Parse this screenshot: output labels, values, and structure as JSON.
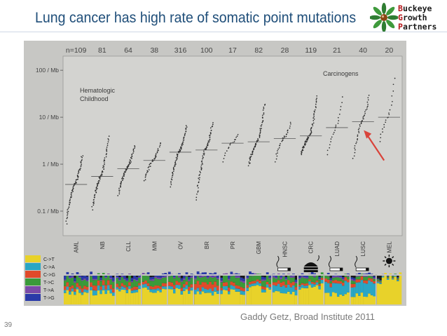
{
  "slide": {
    "title": "Lung cancer has high rate of somatic point mutations",
    "credit": "Gaddy Getz, Broad Institute 2011",
    "page_number": "39"
  },
  "logo": {
    "words": [
      {
        "cap": "B",
        "rest": "uckeye"
      },
      {
        "cap": "G",
        "rest": "rowth"
      },
      {
        "cap": "P",
        "rest": "artners"
      }
    ],
    "icon": "buckeye-leaf-icon",
    "leaf_color": "#2f7d32",
    "nut_color": "#8b4513"
  },
  "chart_data": {
    "type": "scatter",
    "y_scale": "log",
    "ylim": [
      0.03,
      200
    ],
    "y_ticks": [
      {
        "value": 100,
        "label": "100 / Mb"
      },
      {
        "value": 10,
        "label": "10 / Mb"
      },
      {
        "value": 1,
        "label": "1 / Mb"
      },
      {
        "value": 0.1,
        "label": "0.1 / Mb"
      }
    ],
    "grid": false,
    "annotations": {
      "group_left": [
        "Hematologic",
        "Childhood"
      ],
      "group_right": "Carcinogens"
    },
    "categories": [
      {
        "name": "AML",
        "n": "n=109",
        "min": 0.05,
        "median": 0.37,
        "max": 1.6,
        "n_points": 109
      },
      {
        "name": "NB",
        "n": "81",
        "min": 0.1,
        "median": 0.55,
        "max": 4,
        "n_points": 81
      },
      {
        "name": "CLL",
        "n": "64",
        "min": 0.2,
        "median": 0.8,
        "max": 2.5,
        "n_points": 64
      },
      {
        "name": "MM",
        "n": "38",
        "min": 0.4,
        "median": 1.2,
        "max": 3,
        "n_points": 38
      },
      {
        "name": "OV",
        "n": "316",
        "min": 0.3,
        "median": 1.8,
        "max": 7,
        "n_points": 316
      },
      {
        "name": "BR",
        "n": "100",
        "min": 0.15,
        "median": 2,
        "max": 8,
        "n_points": 100
      },
      {
        "name": "PR",
        "n": "17",
        "min": 1,
        "median": 2.8,
        "max": 4.5,
        "n_points": 17
      },
      {
        "name": "GBM",
        "n": "82",
        "min": 0.9,
        "median": 3,
        "max": 20,
        "n_points": 82
      },
      {
        "name": "HNSC",
        "n": "28",
        "min": 1,
        "median": 3.5,
        "max": 8,
        "n_points": 28
      },
      {
        "name": "CRC",
        "n": "119",
        "min": 1.5,
        "median": 4,
        "max": 30,
        "n_points": 119
      },
      {
        "name": "LUAD",
        "n": "21",
        "min": 1.3,
        "median": 6,
        "max": 30,
        "n_points": 21
      },
      {
        "name": "LUSC",
        "n": "40",
        "min": 1.1,
        "median": 8,
        "max": 30,
        "n_points": 40
      },
      {
        "name": "MEL",
        "n": "20",
        "min": 2.5,
        "median": 10,
        "max": 80,
        "n_points": 20
      }
    ],
    "highlight": {
      "category": "LUSC",
      "color": "#d9433a"
    },
    "mutation_spectrum": {
      "legend": [
        {
          "label": "C->T",
          "color": "#e8d22a"
        },
        {
          "label": "C->A",
          "color": "#2aa6c4"
        },
        {
          "label": "C->G",
          "color": "#e04a2a"
        },
        {
          "label": "T->C",
          "color": "#3a9a3a"
        },
        {
          "label": "T->A",
          "color": "#7a4aa8"
        },
        {
          "label": "T->G",
          "color": "#2a3aa8"
        }
      ],
      "fractions": [
        [
          0.42,
          0.1,
          0.12,
          0.22,
          0.04,
          0.1
        ],
        [
          0.38,
          0.14,
          0.14,
          0.2,
          0.04,
          0.1
        ],
        [
          0.45,
          0.1,
          0.1,
          0.22,
          0.04,
          0.09
        ],
        [
          0.46,
          0.1,
          0.1,
          0.2,
          0.05,
          0.09
        ],
        [
          0.44,
          0.12,
          0.12,
          0.18,
          0.05,
          0.09
        ],
        [
          0.36,
          0.12,
          0.2,
          0.18,
          0.05,
          0.09
        ],
        [
          0.42,
          0.12,
          0.1,
          0.22,
          0.06,
          0.08
        ],
        [
          0.52,
          0.1,
          0.08,
          0.18,
          0.04,
          0.08
        ],
        [
          0.4,
          0.22,
          0.12,
          0.14,
          0.05,
          0.07
        ],
        [
          0.56,
          0.1,
          0.06,
          0.16,
          0.04,
          0.08
        ],
        [
          0.34,
          0.36,
          0.1,
          0.1,
          0.04,
          0.06
        ],
        [
          0.32,
          0.38,
          0.1,
          0.1,
          0.04,
          0.06
        ],
        [
          0.86,
          0.05,
          0.02,
          0.04,
          0.01,
          0.02
        ]
      ],
      "icons": [
        {
          "category": "HNSC",
          "name": "cigarette-icon"
        },
        {
          "category": "CRC",
          "name": "burger-icon"
        },
        {
          "category": "LUAD",
          "name": "cigarette-icon"
        },
        {
          "category": "LUSC",
          "name": "cigarette-icon"
        },
        {
          "category": "MEL",
          "name": "sun-icon"
        }
      ]
    }
  }
}
